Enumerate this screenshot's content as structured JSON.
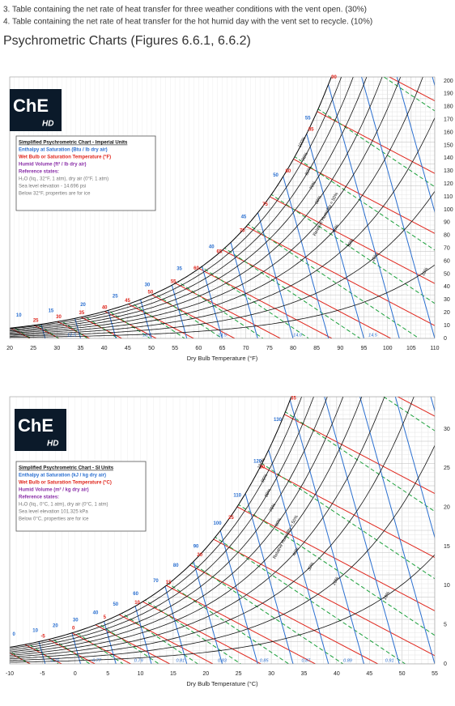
{
  "header": {
    "lines": [
      "3. Table containing the net rate of heat transfer for three weather conditions with the vent open. (30%)",
      "4. Table containing the net rate of heat transfer for the hot humid day with the vent set to recycle. (10%)"
    ]
  },
  "heading": "Psychrometric Charts (Figures 6.6.1, 6.6.2)",
  "figures": [
    {
      "logo": "ChE",
      "logo_sub": "HD",
      "legend": {
        "title": "Simplified Psychrometric Chart - Imperial Units",
        "enthalpy": "Enthalpy at Saturation (Btu / lb dry air)",
        "wet_bulb": "Wet Bulb or Saturation Temperature (°F)",
        "volume": "Humid Volume (ft³ / lb dry air)",
        "reference": "Reference states:",
        "notes": [
          "H₂O (liq., 32°F, 1 atm), dry air (0°F, 1 atm)",
          "Sea level elevation - 14.696 psi",
          "Below 32°F, properties are for ice"
        ]
      },
      "x_axis_label": "Dry Bulb Temperature (°F)",
      "x_ticks": [
        "20",
        "25",
        "30",
        "35",
        "40",
        "45",
        "50",
        "55",
        "60",
        "65",
        "70",
        "75",
        "80",
        "85",
        "90",
        "95",
        "100",
        "105",
        "110"
      ],
      "y_ticks": [
        "0",
        "10",
        "20",
        "30",
        "40",
        "50",
        "60",
        "70",
        "80",
        "90",
        "100",
        "110",
        "120",
        "130",
        "140",
        "150",
        "160",
        "170",
        "180",
        "190",
        "200"
      ],
      "wet_bulb_labels": [
        "25",
        "30",
        "35",
        "40",
        "45",
        "50",
        "55",
        "60",
        "65",
        "70",
        "75",
        "80",
        "85",
        "90"
      ],
      "enthalpy_labels": [
        "10",
        "15",
        "20",
        "25",
        "30",
        "35",
        "40",
        "45",
        "50",
        "55"
      ],
      "volume_labels": [
        "12.5",
        "13.0",
        "13.5",
        "14.0",
        "14.5"
      ],
      "rh_labels": [
        "100%",
        "90%",
        "80%",
        "70%",
        "60%",
        "Relative Humidity = 50%",
        "40%",
        "30%",
        "20%",
        "10%"
      ]
    },
    {
      "logo": "ChE",
      "logo_sub": "HD",
      "legend": {
        "title": "Simplified Psychrometric Chart - SI Units",
        "enthalpy": "Enthalpy at Saturation (kJ / kg dry air)",
        "wet_bulb": "Wet Bulb or Saturation Temperature (°C)",
        "volume": "Humid Volume (m³ / kg dry air)",
        "reference": "Reference states:",
        "notes": [
          "H₂O (liq., 0°C, 1 atm), dry air (0°C, 1 atm)",
          "Sea level elevation 101.325 kPa",
          "Below 0°C, properties are for ice"
        ]
      },
      "x_axis_label": "Dry Bulb Temperature (°C)",
      "x_ticks": [
        "-10",
        "-5",
        "0",
        "5",
        "10",
        "15",
        "20",
        "25",
        "30",
        "35",
        "40",
        "45",
        "50",
        "55"
      ],
      "y_ticks": [
        "0",
        "5",
        "10",
        "15",
        "20",
        "25",
        "30"
      ],
      "wet_bulb_labels": [
        "-5",
        "0",
        "5",
        "10",
        "15",
        "20",
        "25",
        "30",
        "35"
      ],
      "enthalpy_labels": [
        "0",
        "10",
        "20",
        "30",
        "40",
        "50",
        "60",
        "70",
        "80",
        "90",
        "100",
        "110",
        "120",
        "130"
      ],
      "volume_labels": [
        "0.75",
        "0.77",
        "0.79",
        "0.81",
        "0.83",
        "0.85",
        "0.87",
        "0.89",
        "0.91"
      ],
      "rh_labels": [
        "100%",
        "90%",
        "80%",
        "70%",
        "60%",
        "Relative Humidity = 50%",
        "40%",
        "30%",
        "20%",
        "10%"
      ]
    }
  ]
}
